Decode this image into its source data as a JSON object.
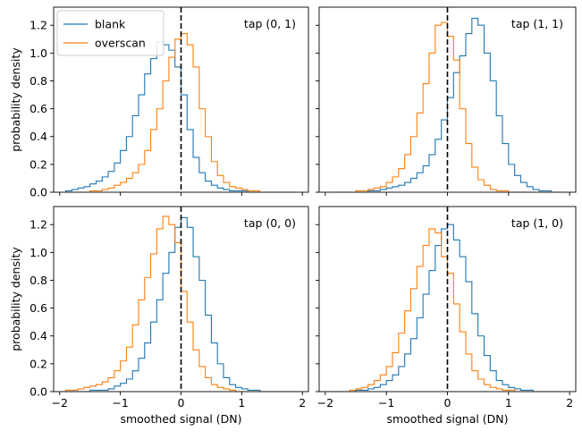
{
  "chart_data": {
    "type": "histogram",
    "shared": {
      "xlabel": "smoothed signal (DN)",
      "ylabel": "probability density",
      "xlim": [
        -2.1,
        2.1
      ],
      "ylim": [
        0,
        1.33
      ],
      "xticks": [
        -2,
        -1,
        0,
        1,
        2
      ],
      "yticks": [
        0.0,
        0.2,
        0.4,
        0.6,
        0.8,
        1.0,
        1.2
      ],
      "vline_x": 0,
      "bin_width": 0.1,
      "bin_start": -1.9,
      "series_styles": [
        {
          "name": "blank",
          "color": "#1f77b4"
        },
        {
          "name": "overscan",
          "color": "#ff7f0e"
        }
      ],
      "legend": {
        "location": "upper-left",
        "panel": 0
      }
    },
    "panels": [
      {
        "title": "tap (0, 1)",
        "series": [
          {
            "name": "blank",
            "values": [
              0.01,
              0.02,
              0.03,
              0.04,
              0.06,
              0.08,
              0.11,
              0.15,
              0.21,
              0.3,
              0.4,
              0.55,
              0.7,
              0.85,
              0.96,
              1.08,
              1.06,
              1.02,
              0.9,
              0.7,
              0.45,
              0.25,
              0.14,
              0.08,
              0.05,
              0.03,
              0.02,
              0.01,
              0.01,
              0.01,
              0,
              0,
              0,
              0,
              0,
              0,
              0,
              0
            ]
          },
          {
            "name": "overscan",
            "values": [
              0,
              0,
              0,
              0,
              0.01,
              0.01,
              0.02,
              0.03,
              0.05,
              0.07,
              0.1,
              0.14,
              0.2,
              0.3,
              0.45,
              0.6,
              0.8,
              0.97,
              1.1,
              1.14,
              1.06,
              0.9,
              0.6,
              0.4,
              0.22,
              0.12,
              0.07,
              0.04,
              0.03,
              0.02,
              0.01,
              0.01,
              0,
              0,
              0,
              0,
              0,
              0
            ]
          }
        ]
      },
      {
        "title": "tap (1, 1)",
        "series": [
          {
            "name": "blank",
            "values": [
              0,
              0,
              0,
              0,
              0,
              0,
              0.01,
              0.01,
              0.02,
              0.03,
              0.04,
              0.05,
              0.07,
              0.1,
              0.14,
              0.19,
              0.27,
              0.38,
              0.52,
              0.68,
              0.86,
              0.98,
              1.14,
              1.25,
              1.2,
              1.0,
              0.8,
              0.55,
              0.35,
              0.2,
              0.12,
              0.07,
              0.04,
              0.02,
              0.01,
              0.01,
              0,
              0
            ]
          },
          {
            "name": "overscan",
            "values": [
              0,
              0,
              0,
              0,
              0.01,
              0.01,
              0.02,
              0.03,
              0.04,
              0.07,
              0.11,
              0.17,
              0.27,
              0.4,
              0.57,
              0.78,
              1.0,
              1.2,
              1.22,
              1.12,
              0.95,
              0.6,
              0.35,
              0.18,
              0.09,
              0.05,
              0.02,
              0.01,
              0.01,
              0,
              0,
              0,
              0,
              0,
              0,
              0,
              0,
              0
            ]
          }
        ]
      },
      {
        "title": "tap (0, 0)",
        "series": [
          {
            "name": "blank",
            "values": [
              0,
              0,
              0,
              0,
              0.01,
              0.01,
              0.01,
              0.02,
              0.04,
              0.06,
              0.09,
              0.15,
              0.24,
              0.35,
              0.5,
              0.66,
              0.85,
              1.0,
              1.18,
              1.25,
              1.18,
              0.97,
              0.8,
              0.55,
              0.35,
              0.2,
              0.1,
              0.05,
              0.03,
              0.02,
              0.01,
              0.01,
              0,
              0,
              0,
              0,
              0,
              0
            ]
          },
          {
            "name": "overscan",
            "values": [
              0.01,
              0.01,
              0.02,
              0.03,
              0.04,
              0.05,
              0.07,
              0.1,
              0.15,
              0.22,
              0.32,
              0.48,
              0.66,
              0.82,
              0.99,
              1.17,
              1.26,
              1.2,
              1.07,
              0.72,
              0.5,
              0.3,
              0.18,
              0.1,
              0.05,
              0.03,
              0.02,
              0.01,
              0,
              0,
              0,
              0,
              0,
              0,
              0,
              0,
              0,
              0
            ]
          }
        ]
      },
      {
        "title": "tap (1, 0)",
        "series": [
          {
            "name": "blank",
            "values": [
              0,
              0,
              0,
              0,
              0.01,
              0.01,
              0.02,
              0.03,
              0.05,
              0.08,
              0.12,
              0.18,
              0.27,
              0.38,
              0.53,
              0.7,
              0.87,
              1.05,
              1.17,
              1.2,
              1.09,
              0.97,
              0.79,
              0.56,
              0.4,
              0.26,
              0.15,
              0.08,
              0.05,
              0.03,
              0.02,
              0.01,
              0.01,
              0,
              0,
              0,
              0,
              0
            ]
          },
          {
            "name": "overscan",
            "values": [
              0,
              0,
              0,
              0.01,
              0.02,
              0.03,
              0.05,
              0.08,
              0.12,
              0.18,
              0.28,
              0.42,
              0.58,
              0.74,
              0.9,
              1.05,
              1.17,
              1.14,
              0.97,
              0.85,
              0.63,
              0.43,
              0.27,
              0.15,
              0.09,
              0.05,
              0.03,
              0.02,
              0.01,
              0.01,
              0,
              0,
              0,
              0,
              0,
              0,
              0,
              0
            ]
          }
        ]
      }
    ]
  }
}
